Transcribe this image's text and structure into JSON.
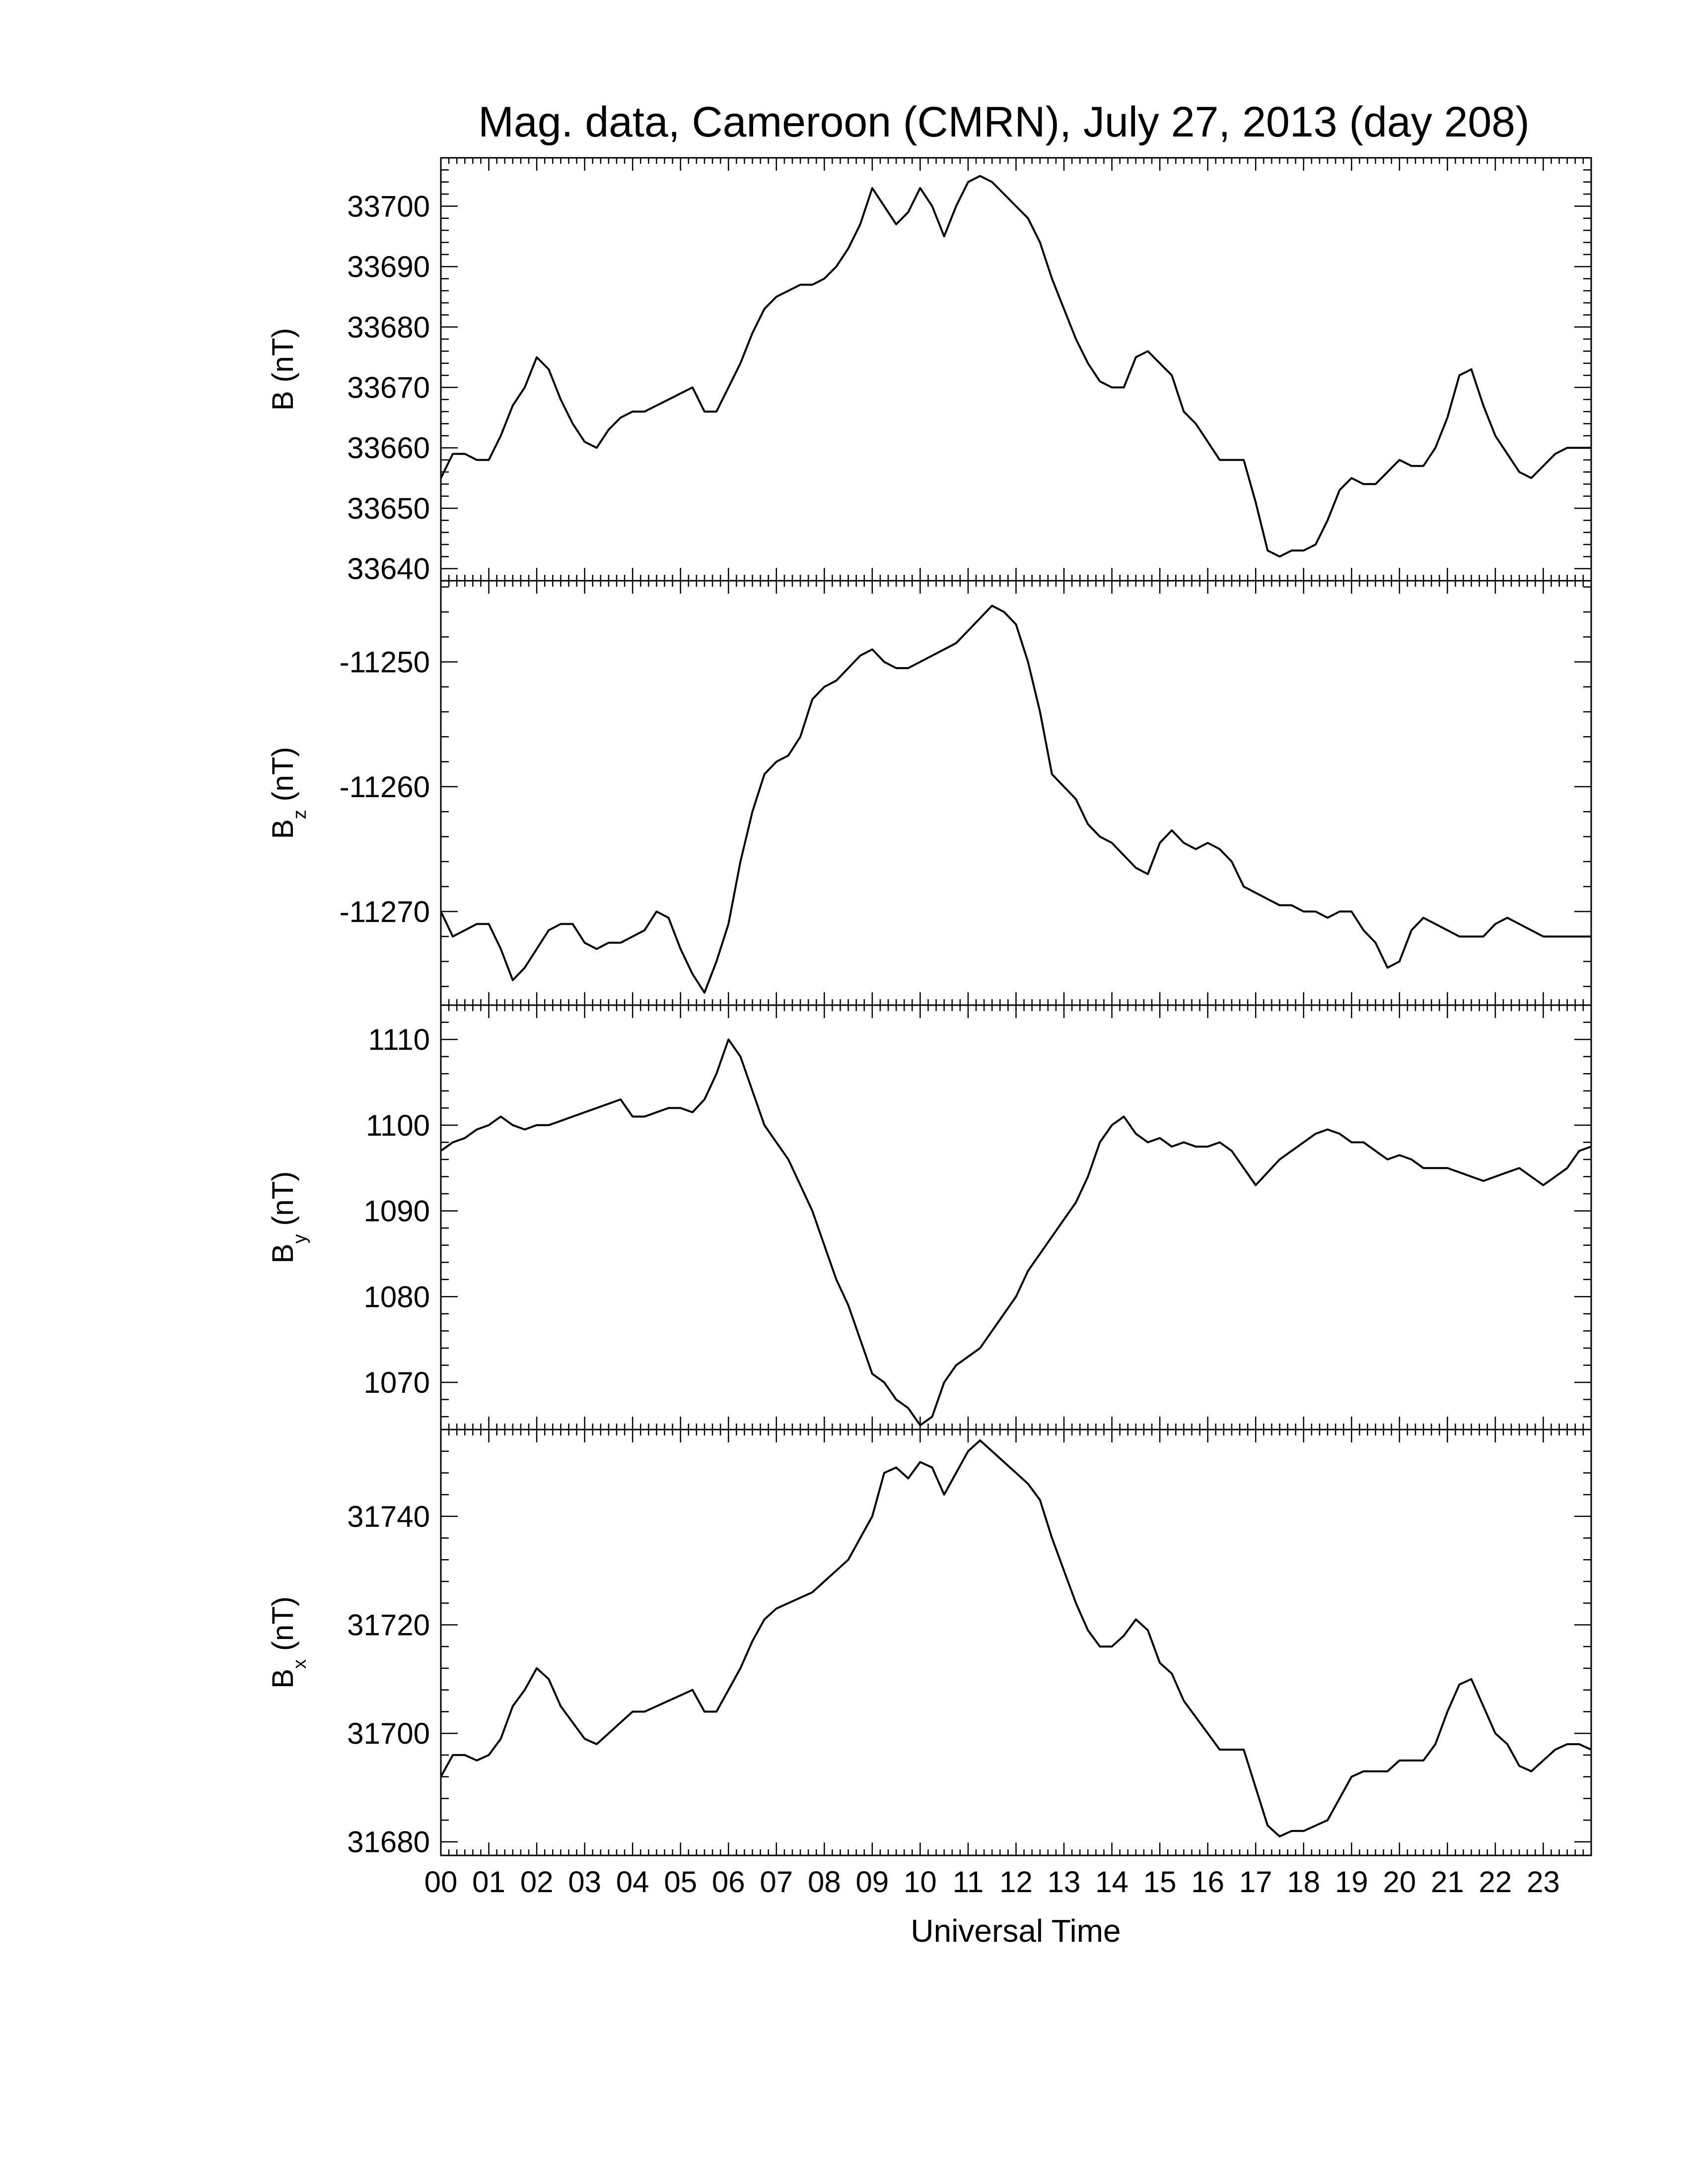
{
  "title": "Mag. data, Cameroon (CMRN), July 27, 2013 (day 208)",
  "x_axis": {
    "label": "Universal Time",
    "range": [
      0,
      24
    ],
    "tick_labels": [
      "00",
      "01",
      "02",
      "03",
      "04",
      "05",
      "06",
      "07",
      "08",
      "09",
      "10",
      "11",
      "12",
      "13",
      "14",
      "15",
      "16",
      "17",
      "18",
      "19",
      "20",
      "21",
      "22",
      "23"
    ]
  },
  "chart_data": [
    {
      "type": "line",
      "panel": "B",
      "ylabel": "B (nT)",
      "ylabel_main": "B",
      "ylabel_sub": "",
      "ylabel_unit": " (nT)",
      "ylim": [
        33638,
        33708
      ],
      "yticks": [
        33640,
        33650,
        33660,
        33670,
        33680,
        33690,
        33700
      ],
      "x": [
        0,
        0.25,
        0.5,
        0.75,
        1.0,
        1.25,
        1.5,
        1.75,
        2.0,
        2.25,
        2.5,
        2.75,
        3.0,
        3.25,
        3.5,
        3.75,
        4.0,
        4.25,
        4.5,
        4.75,
        5.0,
        5.25,
        5.5,
        5.75,
        6.0,
        6.25,
        6.5,
        6.75,
        7.0,
        7.25,
        7.5,
        7.75,
        8.0,
        8.25,
        8.5,
        8.75,
        9.0,
        9.25,
        9.5,
        9.75,
        10.0,
        10.25,
        10.5,
        10.75,
        11.0,
        11.25,
        11.5,
        11.75,
        12.0,
        12.25,
        12.5,
        12.75,
        13.0,
        13.25,
        13.5,
        13.75,
        14.0,
        14.25,
        14.5,
        14.75,
        15.0,
        15.25,
        15.5,
        15.75,
        16.0,
        16.25,
        16.5,
        16.75,
        17.0,
        17.25,
        17.5,
        17.75,
        18.0,
        18.25,
        18.5,
        18.75,
        19.0,
        19.25,
        19.5,
        19.75,
        20.0,
        20.25,
        20.5,
        20.75,
        21.0,
        21.25,
        21.5,
        21.75,
        22.0,
        22.25,
        22.5,
        22.75,
        23.0,
        23.25,
        23.5,
        23.75,
        24.0
      ],
      "values": [
        33655,
        33659,
        33659,
        33658,
        33658,
        33662,
        33667,
        33670,
        33675,
        33673,
        33668,
        33664,
        33661,
        33660,
        33663,
        33665,
        33666,
        33666,
        33667,
        33668,
        33669,
        33670,
        33666,
        33666,
        33670,
        33674,
        33679,
        33683,
        33685,
        33686,
        33687,
        33687,
        33688,
        33690,
        33693,
        33697,
        33703,
        33700,
        33697,
        33699,
        33703,
        33700,
        33695,
        33700,
        33704,
        33705,
        33704,
        33702,
        33700,
        33698,
        33694,
        33688,
        33683,
        33678,
        33674,
        33671,
        33670,
        33670,
        33675,
        33676,
        33674,
        33672,
        33666,
        33664,
        33661,
        33658,
        33658,
        33658,
        33651,
        33643,
        33642,
        33643,
        33643,
        33644,
        33648,
        33653,
        33655,
        33654,
        33654,
        33656,
        33658,
        33657,
        33657,
        33660,
        33665,
        33672,
        33673,
        33667,
        33662,
        33659,
        33656,
        33655,
        33657,
        33659,
        33660,
        33660,
        33660
      ]
    },
    {
      "type": "line",
      "panel": "Bz",
      "ylabel": "B z (nT)",
      "ylabel_main": "B",
      "ylabel_sub": "z",
      "ylabel_unit": " (nT)",
      "ylim": [
        -11277.5,
        -11243.5
      ],
      "yticks": [
        -11250,
        -11260,
        -11270
      ],
      "x": [
        0,
        0.25,
        0.5,
        0.75,
        1.0,
        1.25,
        1.5,
        1.75,
        2.0,
        2.25,
        2.5,
        2.75,
        3.0,
        3.25,
        3.5,
        3.75,
        4.0,
        4.25,
        4.5,
        4.75,
        5.0,
        5.25,
        5.5,
        5.75,
        6.0,
        6.25,
        6.5,
        6.75,
        7.0,
        7.25,
        7.5,
        7.75,
        8.0,
        8.25,
        8.5,
        8.75,
        9.0,
        9.25,
        9.5,
        9.75,
        10.0,
        10.25,
        10.5,
        10.75,
        11.0,
        11.25,
        11.5,
        11.75,
        12.0,
        12.25,
        12.5,
        12.75,
        13.0,
        13.25,
        13.5,
        13.75,
        14.0,
        14.25,
        14.5,
        14.75,
        15.0,
        15.25,
        15.5,
        15.75,
        16.0,
        16.25,
        16.5,
        16.75,
        17.0,
        17.25,
        17.5,
        17.75,
        18.0,
        18.25,
        18.5,
        18.75,
        19.0,
        19.25,
        19.5,
        19.75,
        20.0,
        20.25,
        20.5,
        20.75,
        21.0,
        21.25,
        21.5,
        21.75,
        22.0,
        22.25,
        22.5,
        22.75,
        23.0,
        23.25,
        23.5,
        23.75,
        24.0
      ],
      "values": [
        -11270,
        -11272,
        -11271.5,
        -11271,
        -11271,
        -11273,
        -11275.5,
        -11274.5,
        -11273,
        -11271.5,
        -11271,
        -11271,
        -11272.5,
        -11273,
        -11272.5,
        -11272.5,
        -11272,
        -11271.5,
        -11270,
        -11270.5,
        -11273,
        -11275,
        -11276.5,
        -11274,
        -11271,
        -11266,
        -11262,
        -11259,
        -11258,
        -11257.5,
        -11256,
        -11253,
        -11252,
        -11251.5,
        -11250.5,
        -11249.5,
        -11249,
        -11250,
        -11250.5,
        -11250.5,
        -11250,
        -11249.5,
        -11249,
        -11248.5,
        -11247.5,
        -11246.5,
        -11245.5,
        -11246,
        -11247,
        -11250,
        -11254,
        -11259,
        -11260,
        -11261,
        -11263,
        -11264,
        -11264.5,
        -11265.5,
        -11266.5,
        -11267,
        -11264.5,
        -11263.5,
        -11264.5,
        -11265,
        -11264.5,
        -11265,
        -11266,
        -11268,
        -11268.5,
        -11269,
        -11269.5,
        -11269.5,
        -11270,
        -11270,
        -11270.5,
        -11270,
        -11270,
        -11271.5,
        -11272.5,
        -11274.5,
        -11274,
        -11271.5,
        -11270.5,
        -11271,
        -11271.5,
        -11272,
        -11272,
        -11272,
        -11271,
        -11270.5,
        -11271,
        -11271.5,
        -11272,
        -11272,
        -11272,
        -11272,
        -11272
      ]
    },
    {
      "type": "line",
      "panel": "By",
      "ylabel": "B y (nT)",
      "ylabel_main": "B",
      "ylabel_sub": "y",
      "ylabel_unit": " (nT)",
      "ylim": [
        1064.5,
        1114
      ],
      "yticks": [
        1070,
        1080,
        1090,
        1100,
        1110
      ],
      "x": [
        0,
        0.25,
        0.5,
        0.75,
        1.0,
        1.25,
        1.5,
        1.75,
        2.0,
        2.25,
        2.5,
        2.75,
        3.0,
        3.25,
        3.5,
        3.75,
        4.0,
        4.25,
        4.5,
        4.75,
        5.0,
        5.25,
        5.5,
        5.75,
        6.0,
        6.25,
        6.5,
        6.75,
        7.0,
        7.25,
        7.5,
        7.75,
        8.0,
        8.25,
        8.5,
        8.75,
        9.0,
        9.25,
        9.5,
        9.75,
        10.0,
        10.25,
        10.5,
        10.75,
        11.0,
        11.25,
        11.5,
        11.75,
        12.0,
        12.25,
        12.5,
        12.75,
        13.0,
        13.25,
        13.5,
        13.75,
        14.0,
        14.25,
        14.5,
        14.75,
        15.0,
        15.25,
        15.5,
        15.75,
        16.0,
        16.25,
        16.5,
        16.75,
        17.0,
        17.25,
        17.5,
        17.75,
        18.0,
        18.25,
        18.5,
        18.75,
        19.0,
        19.25,
        19.5,
        19.75,
        20.0,
        20.25,
        20.5,
        20.75,
        21.0,
        21.25,
        21.5,
        21.75,
        22.0,
        22.25,
        22.5,
        22.75,
        23.0,
        23.25,
        23.5,
        23.75,
        24.0
      ],
      "values": [
        1097,
        1098,
        1098.5,
        1099.5,
        1100,
        1101,
        1100,
        1099.5,
        1100,
        1100,
        1100.5,
        1101,
        1101.5,
        1102,
        1102.5,
        1103,
        1101,
        1101,
        1101.5,
        1102,
        1102,
        1101.5,
        1103,
        1106,
        1110,
        1108,
        1104,
        1100,
        1098,
        1096,
        1093,
        1090,
        1086,
        1082,
        1079,
        1075,
        1071,
        1070,
        1068,
        1067,
        1065,
        1066,
        1070,
        1072,
        1073,
        1074,
        1076,
        1078,
        1080,
        1083,
        1085,
        1087,
        1089,
        1091,
        1094,
        1098,
        1100,
        1101,
        1099,
        1098,
        1098.5,
        1097.5,
        1098,
        1097.5,
        1097.5,
        1098,
        1097,
        1095,
        1093,
        1094.5,
        1096,
        1097,
        1098,
        1099,
        1099.5,
        1099,
        1098,
        1098,
        1097,
        1096,
        1096.5,
        1096,
        1095,
        1095,
        1095,
        1094.5,
        1094,
        1093.5,
        1094,
        1094.5,
        1095,
        1094,
        1093,
        1094,
        1095,
        1097,
        1097.5
      ]
    },
    {
      "type": "line",
      "panel": "Bx",
      "ylabel": "B x (nT)",
      "ylabel_main": "B",
      "ylabel_sub": "x",
      "ylabel_unit": " (nT)",
      "ylim": [
        31677.5,
        31756
      ],
      "yticks": [
        31680,
        31700,
        31720,
        31740
      ],
      "x": [
        0,
        0.25,
        0.5,
        0.75,
        1.0,
        1.25,
        1.5,
        1.75,
        2.0,
        2.25,
        2.5,
        2.75,
        3.0,
        3.25,
        3.5,
        3.75,
        4.0,
        4.25,
        4.5,
        4.75,
        5.0,
        5.25,
        5.5,
        5.75,
        6.0,
        6.25,
        6.5,
        6.75,
        7.0,
        7.25,
        7.5,
        7.75,
        8.0,
        8.25,
        8.5,
        8.75,
        9.0,
        9.25,
        9.5,
        9.75,
        10.0,
        10.25,
        10.5,
        10.75,
        11.0,
        11.25,
        11.5,
        11.75,
        12.0,
        12.25,
        12.5,
        12.75,
        13.0,
        13.25,
        13.5,
        13.75,
        14.0,
        14.25,
        14.5,
        14.75,
        15.0,
        15.25,
        15.5,
        15.75,
        16.0,
        16.25,
        16.5,
        16.75,
        17.0,
        17.25,
        17.5,
        17.75,
        18.0,
        18.25,
        18.5,
        18.75,
        19.0,
        19.25,
        19.5,
        19.75,
        20.0,
        20.25,
        20.5,
        20.75,
        21.0,
        21.25,
        21.5,
        21.75,
        22.0,
        22.25,
        22.5,
        22.75,
        23.0,
        23.25,
        23.5,
        23.75,
        24.0
      ],
      "values": [
        31692,
        31696,
        31696,
        31695,
        31696,
        31699,
        31705,
        31708,
        31712,
        31710,
        31705,
        31702,
        31699,
        31698,
        31700,
        31702,
        31704,
        31704,
        31705,
        31706,
        31707,
        31708,
        31704,
        31704,
        31708,
        31712,
        31717,
        31721,
        31723,
        31724,
        31725,
        31726,
        31728,
        31730,
        31732,
        31736,
        31740,
        31748,
        31749,
        31747,
        31750,
        31749,
        31744,
        31748,
        31752,
        31754,
        31752,
        31750,
        31748,
        31746,
        31743,
        31736,
        31730,
        31724,
        31719,
        31716,
        31716,
        31718,
        31721,
        31719,
        31713,
        31711,
        31706,
        31703,
        31700,
        31697,
        31697,
        31697,
        31690,
        31683,
        31681,
        31682,
        31682,
        31683,
        31684,
        31688,
        31692,
        31693,
        31693,
        31693,
        31695,
        31695,
        31695,
        31698,
        31704,
        31709,
        31710,
        31705,
        31700,
        31698,
        31694,
        31693,
        31695,
        31697,
        31698,
        31698,
        31697
      ]
    }
  ]
}
